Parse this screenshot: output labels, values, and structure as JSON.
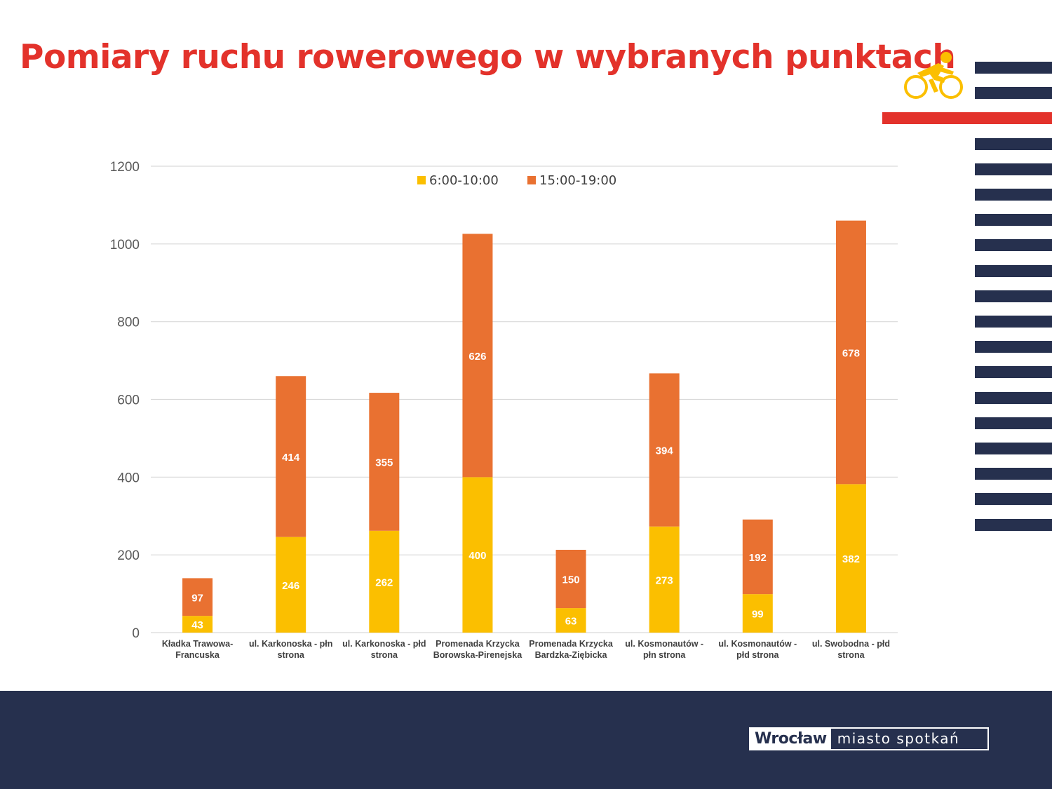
{
  "page": {
    "title": "Pomiary ruchu rowerowego w wybranych punktach",
    "logo_left": "Wrocław",
    "logo_right": "miasto spotkań"
  },
  "colors": {
    "title": "#e3322b",
    "navy": "#26304e",
    "red_bar": "#e3322b",
    "bike_icon": "#fbbf00",
    "series_morning": "#fbbf00",
    "series_afternoon": "#e97131",
    "grid": "#d9d9d9"
  },
  "icons": {
    "bike": "cyclist-icon"
  },
  "chart_data": {
    "type": "bar",
    "stacked": true,
    "title": "",
    "xlabel": "",
    "ylabel": "",
    "ylim": [
      0,
      1200
    ],
    "yticks": [
      0,
      200,
      400,
      600,
      800,
      1000,
      1200
    ],
    "grid": true,
    "legend_position": "top-center",
    "categories": [
      [
        "Kładka Trawowa-",
        "Francuska"
      ],
      [
        "ul. Karkonoska - płn",
        "strona"
      ],
      [
        "ul. Karkonoska - płd",
        "strona"
      ],
      [
        "Promenada Krzycka",
        "Borowska-Pirenejska"
      ],
      [
        "Promenada Krzycka",
        "Bardzka-Ziębicka"
      ],
      [
        "ul. Kosmonautów -",
        "płn strona"
      ],
      [
        "ul. Kosmonautów -",
        "płd strona"
      ],
      [
        "ul. Swobodna - płd",
        "strona"
      ]
    ],
    "series": [
      {
        "name": "6:00-10:00",
        "color": "#fbbf00",
        "values": [
          43,
          246,
          262,
          400,
          63,
          273,
          99,
          382
        ]
      },
      {
        "name": "15:00-19:00",
        "color": "#e97131",
        "values": [
          97,
          414,
          355,
          626,
          150,
          394,
          192,
          678
        ]
      }
    ]
  }
}
